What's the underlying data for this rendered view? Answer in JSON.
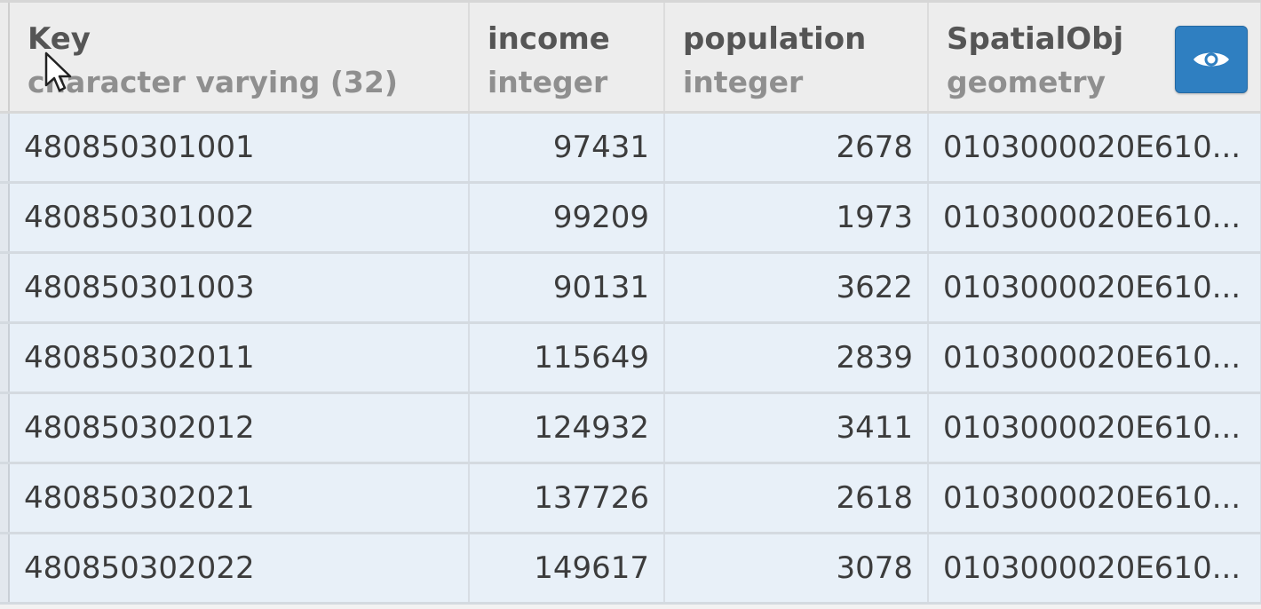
{
  "columns": [
    {
      "name": "Key",
      "type": "character varying (32)"
    },
    {
      "name": "income",
      "type": "integer"
    },
    {
      "name": "population",
      "type": "integer"
    },
    {
      "name": "SpatialObj",
      "type": "geometry"
    }
  ],
  "header_button": {
    "icon": "eye-icon"
  },
  "rows": [
    {
      "key": "480850301001",
      "income": "97431",
      "population": "2678",
      "spatial": "0103000020E610..."
    },
    {
      "key": "480850301002",
      "income": "99209",
      "population": "1973",
      "spatial": "0103000020E610..."
    },
    {
      "key": "480850301003",
      "income": "90131",
      "population": "3622",
      "spatial": "0103000020E610..."
    },
    {
      "key": "480850302011",
      "income": "115649",
      "population": "2839",
      "spatial": "0103000020E610..."
    },
    {
      "key": "480850302012",
      "income": "124932",
      "population": "3411",
      "spatial": "0103000020E610..."
    },
    {
      "key": "480850302021",
      "income": "137726",
      "population": "2618",
      "spatial": "0103000020E610..."
    },
    {
      "key": "480850302022",
      "income": "149617",
      "population": "3078",
      "spatial": "0103000020E610..."
    }
  ],
  "colors": {
    "row_background": "#e8f0f8",
    "header_background": "#ededed",
    "button_accent": "#2f7fc1"
  }
}
